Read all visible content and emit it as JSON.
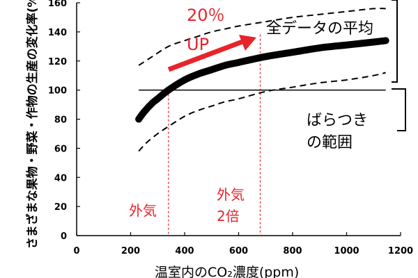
{
  "chart_data": {
    "type": "line",
    "xlabel": "温室内のCO₂濃度(ppm)",
    "ylabel": "さまざまな果物・野菜・作物の生産の変化率(%)",
    "xlim": [
      0,
      1200
    ],
    "ylim": [
      0,
      160
    ],
    "x_ticks": [
      "0",
      "200",
      "400",
      "600",
      "800",
      "1000",
      "1200"
    ],
    "y_ticks": [
      "0",
      "20",
      "40",
      "60",
      "80",
      "100",
      "120",
      "140",
      "160"
    ],
    "grid": false,
    "series": [
      {
        "name": "全データの平均",
        "style": "thick-band",
        "x": [
          230,
          250,
          280,
          300,
          340,
          400,
          450,
          500,
          550,
          600,
          700,
          800,
          900,
          1000,
          1100,
          1145
        ],
        "y": [
          80,
          85,
          91,
          94,
          100,
          107,
          111,
          114,
          117,
          119,
          123,
          126,
          129,
          131,
          133,
          134
        ]
      },
      {
        "style": "dashed",
        "x": [
          230,
          280,
          340,
          400,
          450,
          500,
          550,
          600,
          700,
          800,
          900,
          1000,
          1100,
          1145
        ],
        "y": [
          117,
          123,
          130,
          134,
          137,
          140,
          142,
          144,
          147,
          150,
          152,
          154,
          156,
          156
        ]
      },
      {
        "style": "dashed",
        "x": [
          230,
          260,
          300,
          340,
          400,
          450,
          500,
          550,
          600,
          700,
          800,
          900,
          1000,
          1100,
          1145
        ],
        "y": [
          58,
          64,
          70,
          75,
          82,
          86,
          89,
          92,
          94,
          99,
          102,
          105,
          107,
          110,
          112
        ]
      },
      {
        "style": "baseline",
        "x": [
          230,
          1145
        ],
        "y": [
          100,
          100
        ]
      }
    ],
    "reference_lines": [
      {
        "x": 340,
        "label": "外気"
      },
      {
        "x": 680,
        "label": "外気\n2倍"
      }
    ],
    "annotations": {
      "increase_pct": "20％",
      "increase_word": "UP",
      "mean_label": "全データの平均",
      "spread_line1": "ばらつき",
      "spread_line2": "の範囲",
      "ambient": "外気",
      "double_line1": "外気",
      "double_line2": "2倍"
    },
    "colors": {
      "accent": "#e8232a",
      "ink": "#000000"
    }
  }
}
